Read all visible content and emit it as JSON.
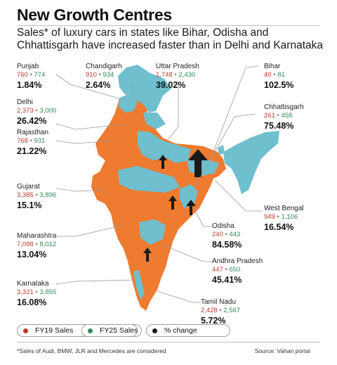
{
  "title": "New Growth Centres",
  "subtitle": "Sales* of luxury cars in states like Bihar, Odisha and Chhattisgarh have increased faster than in Delhi and Karnataka",
  "colors": {
    "fy19": "#c0392b",
    "fy25": "#2e8b57",
    "land": "#ee7b30",
    "highlight": "#6fbfcf",
    "arrow": "#1a1a1a"
  },
  "states": [
    {
      "name": "Punjab",
      "fy19": "760",
      "fy25": "774",
      "pct": "1.84",
      "unit": "%"
    },
    {
      "name": "Chandigarh",
      "fy19": "910",
      "fy25": "934",
      "pct": "2.64",
      "unit": "%"
    },
    {
      "name": "Uttar Pradesh",
      "fy19": "1,748",
      "fy25": "2,430",
      "pct": "39.02",
      "unit": "%"
    },
    {
      "name": "Bihar",
      "fy19": "40",
      "fy25": "81",
      "pct": "102.5",
      "unit": "%"
    },
    {
      "name": "Delhi",
      "fy19": "2,373",
      "fy25": "3,000",
      "pct": "26.42",
      "unit": "%"
    },
    {
      "name": "Chhattisgarh",
      "fy19": "261",
      "fy25": "458",
      "pct": "75.48",
      "unit": "%"
    },
    {
      "name": "Rajasthan",
      "fy19": "768",
      "fy25": "931",
      "pct": "21.22",
      "unit": "%"
    },
    {
      "name": "Gujarat",
      "fy19": "3,385",
      "fy25": "3,896",
      "pct": "15.1",
      "unit": "%"
    },
    {
      "name": "West Bengal",
      "fy19": "949",
      "fy25": "1,106",
      "pct": "16.54",
      "unit": "%"
    },
    {
      "name": "Maharashtra",
      "fy19": "7,088",
      "fy25": "8,012",
      "pct": "13.04",
      "unit": "%"
    },
    {
      "name": "Odisha",
      "fy19": "240",
      "fy25": "443",
      "pct": "84.58",
      "unit": "%"
    },
    {
      "name": "Andhra Pradesh",
      "fy19": "447",
      "fy25": "650",
      "pct": "45.41",
      "unit": "%"
    },
    {
      "name": "Karnataka",
      "fy19": "3,321",
      "fy25": "3,855",
      "pct": "16.08",
      "unit": "%"
    },
    {
      "name": "Tamil Nadu",
      "fy19": "2,428",
      "fy25": "2,567",
      "pct": "5.72",
      "unit": "%"
    }
  ],
  "legend": {
    "fy19": "FY19 Sales",
    "fy25": "FY25 Sales",
    "change": "% change"
  },
  "separator": "•",
  "footnote": "*Sales of Audi, BMW, JLR and Mercedes are considered",
  "source": "Source: Vahan portal"
}
